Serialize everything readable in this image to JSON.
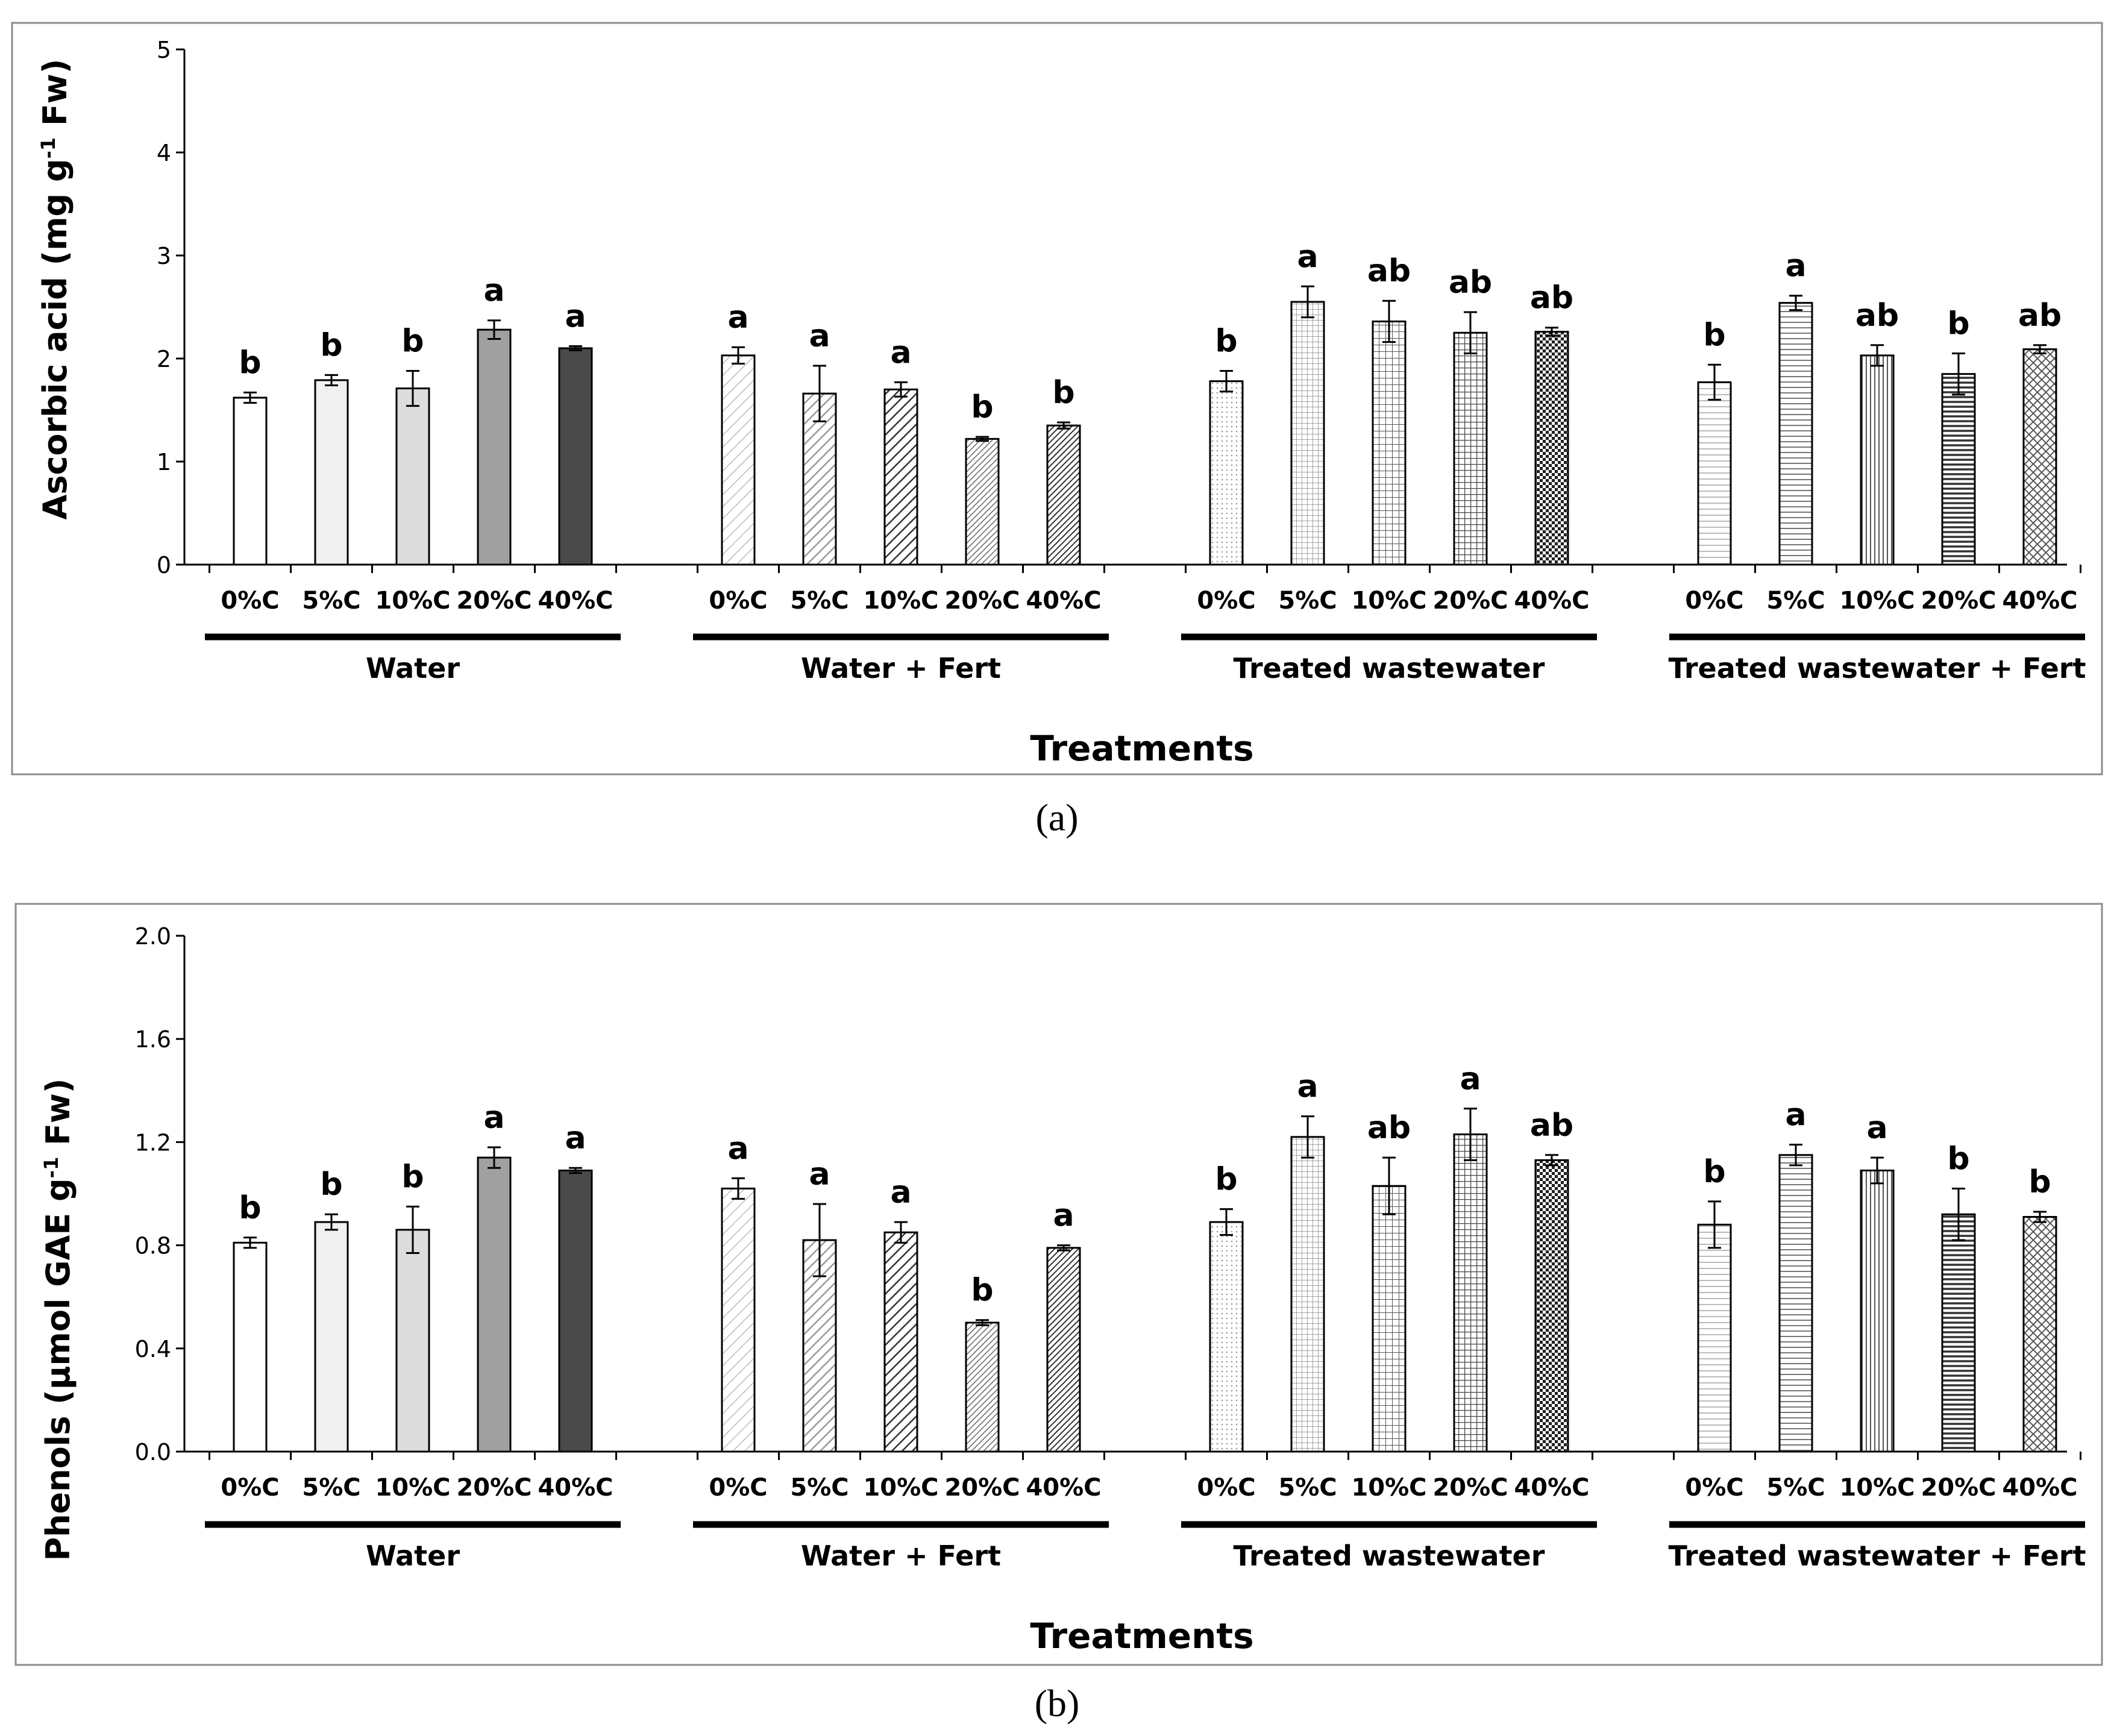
{
  "chart_data": [
    {
      "panel": "(a)",
      "type": "bar",
      "ylabel": "Ascorbic acid (mg g-1 Fw)",
      "ylabel_parts": {
        "before": "Ascorbic acid (mg g",
        "sup": "-1",
        "after": " Fw)"
      },
      "xlabel": "Treatments",
      "ylim": [
        0,
        5
      ],
      "yticks": [
        "0",
        "1",
        "2",
        "3",
        "4",
        "5"
      ],
      "categories": [
        "0%C",
        "5%C",
        "10%C",
        "20%C",
        "40%C"
      ],
      "groups": [
        {
          "name": "Water",
          "values": [
            1.62,
            1.79,
            1.71,
            2.28,
            2.1
          ],
          "errors": [
            0.05,
            0.05,
            0.17,
            0.09,
            0.02
          ],
          "letters": [
            "b",
            "b",
            "b",
            "a",
            "a"
          ]
        },
        {
          "name": "Water + Fert",
          "values": [
            2.03,
            1.66,
            1.7,
            1.22,
            1.35
          ],
          "errors": [
            0.08,
            0.27,
            0.07,
            0.02,
            0.03
          ],
          "letters": [
            "a",
            "a",
            "a",
            "b",
            "b"
          ]
        },
        {
          "name": "Treated wastewater",
          "values": [
            1.78,
            2.55,
            2.36,
            2.25,
            2.26
          ],
          "errors": [
            0.1,
            0.15,
            0.2,
            0.2,
            0.04
          ],
          "letters": [
            "b",
            "a",
            "ab",
            "ab",
            "ab"
          ]
        },
        {
          "name": "Treated wastewater + Fert",
          "values": [
            1.77,
            2.54,
            2.03,
            1.85,
            2.09
          ],
          "errors": [
            0.17,
            0.07,
            0.1,
            0.2,
            0.04
          ],
          "letters": [
            "b",
            "a",
            "ab",
            "b",
            "ab"
          ]
        }
      ]
    },
    {
      "panel": "(b)",
      "type": "bar",
      "ylabel": "Phenols (µmol GAE g-1 Fw)",
      "ylabel_parts": {
        "before": "Phenols (µmol GAE g",
        "sup": "-1",
        "after": " Fw)"
      },
      "xlabel": "Treatments",
      "ylim": [
        0,
        2.0
      ],
      "yticks": [
        "0.0",
        "0.4",
        "0.8",
        "1.2",
        "1.6",
        "2.0"
      ],
      "categories": [
        "0%C",
        "5%C",
        "10%C",
        "20%C",
        "40%C"
      ],
      "groups": [
        {
          "name": "Water",
          "values": [
            0.81,
            0.89,
            0.86,
            1.14,
            1.09
          ],
          "errors": [
            0.02,
            0.03,
            0.09,
            0.04,
            0.01
          ],
          "letters": [
            "b",
            "b",
            "b",
            "a",
            "a"
          ]
        },
        {
          "name": "Water + Fert",
          "values": [
            1.02,
            0.82,
            0.85,
            0.5,
            0.79
          ],
          "errors": [
            0.04,
            0.14,
            0.04,
            0.01,
            0.01
          ],
          "letters": [
            "a",
            "a",
            "a",
            "b",
            "a"
          ]
        },
        {
          "name": "Treated wastewater",
          "values": [
            0.89,
            1.22,
            1.03,
            1.23,
            1.13
          ],
          "errors": [
            0.05,
            0.08,
            0.11,
            0.1,
            0.02
          ],
          "letters": [
            "b",
            "a",
            "ab",
            "a",
            "ab"
          ]
        },
        {
          "name": "Treated wastewater + Fert",
          "values": [
            0.88,
            1.15,
            1.09,
            0.92,
            0.91
          ],
          "errors": [
            0.09,
            0.04,
            0.05,
            0.1,
            0.02
          ],
          "letters": [
            "b",
            "a",
            "a",
            "b",
            "b"
          ]
        }
      ]
    }
  ]
}
